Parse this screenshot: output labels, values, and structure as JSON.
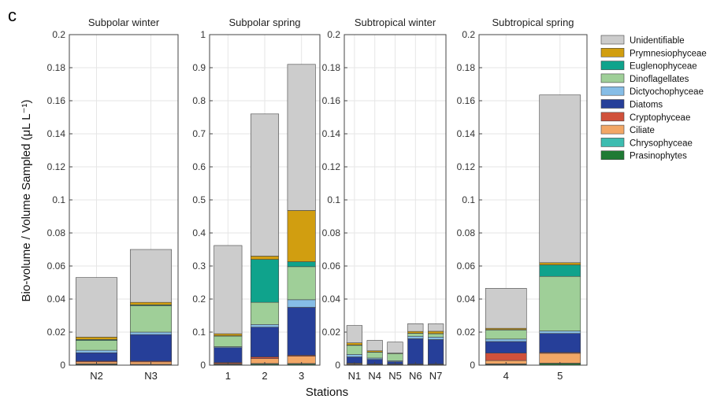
{
  "figure": {
    "panel_letter": "c",
    "ylabel": "Bio-volume / Volume Sampled (μL L⁻¹)",
    "xlabel": "Stations"
  },
  "colors": {
    "Unidentifiable": "#cccccc",
    "Prymnesiophyceae": "#d19e10",
    "Euglenophyceae": "#0fa38c",
    "Dinoflagellates": "#9fcf98",
    "Dictyochophyceae": "#86bde6",
    "Diatoms": "#263f99",
    "Cryptophyceae": "#d0513b",
    "Ciliate": "#f2a766",
    "Chrysophyceae": "#3dbcb0",
    "Prasinophytes": "#1f7a34"
  },
  "legend": [
    "Unidentifiable",
    "Prymnesiophyceae",
    "Euglenophyceae",
    "Dinoflagellates",
    "Dictyochophyceae",
    "Diatoms",
    "Cryptophyceae",
    "Ciliate",
    "Chrysophyceae",
    "Prasinophytes"
  ],
  "chart_data": [
    {
      "type": "bar",
      "stacked": true,
      "title": "Subpolar winter",
      "ylim": [
        0,
        0.2
      ],
      "yticks": [
        "0",
        "0.02",
        "0.04",
        "0.06",
        "0.08",
        "0.1",
        "0.12",
        "0.14",
        "0.16",
        "0.18",
        "0.2"
      ],
      "categories": [
        "N2",
        "N3"
      ],
      "series": [
        {
          "name": "Prasinophytes",
          "values": [
            0.0005,
            0.0003
          ]
        },
        {
          "name": "Chrysophyceae",
          "values": [
            0.0003,
            0.0002
          ]
        },
        {
          "name": "Ciliate",
          "values": [
            0.0012,
            0.0015
          ]
        },
        {
          "name": "Cryptophyceae",
          "values": [
            0.0005,
            0.0005
          ]
        },
        {
          "name": "Diatoms",
          "values": [
            0.005,
            0.016
          ]
        },
        {
          "name": "Dictyochophyceae",
          "values": [
            0.0015,
            0.0015
          ]
        },
        {
          "name": "Dinoflagellates",
          "values": [
            0.006,
            0.016
          ]
        },
        {
          "name": "Euglenophyceae",
          "values": [
            0.0005,
            0.0005
          ]
        },
        {
          "name": "Prymnesiophyceae",
          "values": [
            0.0015,
            0.0015
          ]
        },
        {
          "name": "Unidentifiable",
          "values": [
            0.036,
            0.032
          ]
        }
      ]
    },
    {
      "type": "bar",
      "stacked": true,
      "title": "Subpolar spring",
      "ylim": [
        0,
        1
      ],
      "yticks": [
        "0",
        "0.1",
        "0.2",
        "0.3",
        "0.4",
        "0.5",
        "0.6",
        "0.7",
        "0.8",
        "0.9",
        "1"
      ],
      "categories": [
        "1",
        "2",
        "3"
      ],
      "series": [
        {
          "name": "Prasinophytes",
          "values": [
            0.002,
            0.003,
            0.003
          ]
        },
        {
          "name": "Chrysophyceae",
          "values": [
            0.001,
            0.002,
            0.002
          ]
        },
        {
          "name": "Ciliate",
          "values": [
            0.002,
            0.015,
            0.022
          ]
        },
        {
          "name": "Cryptophyceae",
          "values": [
            0.003,
            0.005,
            0.003
          ]
        },
        {
          "name": "Diatoms",
          "values": [
            0.045,
            0.09,
            0.145
          ]
        },
        {
          "name": "Dictyochophyceae",
          "values": [
            0.003,
            0.008,
            0.023
          ]
        },
        {
          "name": "Dinoflagellates",
          "values": [
            0.032,
            0.067,
            0.1
          ]
        },
        {
          "name": "Euglenophyceae",
          "values": [
            0.001,
            0.13,
            0.015
          ]
        },
        {
          "name": "Prymnesiophyceae",
          "values": [
            0.006,
            0.01,
            0.155
          ]
        },
        {
          "name": "Unidentifiable",
          "values": [
            0.267,
            0.43,
            0.442
          ]
        }
      ]
    },
    {
      "type": "bar",
      "stacked": true,
      "title": "Subtropical winter",
      "ylim": [
        0,
        0.2
      ],
      "yticks": [
        "0",
        "0.02",
        "0.04",
        "0.06",
        "0.08",
        "0.1",
        "0.12",
        "0.14",
        "0.16",
        "0.18",
        "0.2"
      ],
      "categories": [
        "N1",
        "N4",
        "N5",
        "N6",
        "N7"
      ],
      "series": [
        {
          "name": "Prasinophytes",
          "values": [
            0.0003,
            0.0002,
            0.0002,
            0.0003,
            0.0003
          ]
        },
        {
          "name": "Chrysophyceae",
          "values": [
            0.0002,
            0.0001,
            0.0001,
            0.0001,
            0.0001
          ]
        },
        {
          "name": "Ciliate",
          "values": [
            0.0005,
            0.0003,
            0.0003,
            0.0002,
            0.0002
          ]
        },
        {
          "name": "Cryptophyceae",
          "values": [
            0.0002,
            0.0001,
            0.0001,
            0.0001,
            0.0001
          ]
        },
        {
          "name": "Diatoms",
          "values": [
            0.0038,
            0.0028,
            0.0014,
            0.0153,
            0.0148
          ]
        },
        {
          "name": "Dictyochophyceae",
          "values": [
            0.0015,
            0.0008,
            0.0006,
            0.0015,
            0.0015
          ]
        },
        {
          "name": "Dinoflagellates",
          "values": [
            0.0055,
            0.0035,
            0.0043,
            0.0017,
            0.002
          ]
        },
        {
          "name": "Euglenophyceae",
          "values": [
            0.0002,
            0.0001,
            0.0001,
            0.0001,
            0.0001
          ]
        },
        {
          "name": "Prymnesiophyceae",
          "values": [
            0.0013,
            0.0008,
            0.0002,
            0.0011,
            0.0014
          ]
        },
        {
          "name": "Unidentifiable",
          "values": [
            0.0105,
            0.0063,
            0.0067,
            0.0047,
            0.0045
          ]
        }
      ]
    },
    {
      "type": "bar",
      "stacked": true,
      "title": "Subtropical spring",
      "ylim": [
        0,
        0.2
      ],
      "yticks": [
        "0",
        "0.02",
        "0.04",
        "0.06",
        "0.08",
        "0.1",
        "0.12",
        "0.14",
        "0.16",
        "0.18",
        "0.2"
      ],
      "categories": [
        "4",
        "5"
      ],
      "series": [
        {
          "name": "Prasinophytes",
          "values": [
            0.0005,
            0.001
          ]
        },
        {
          "name": "Chrysophyceae",
          "values": [
            0.0003,
            0.0002
          ]
        },
        {
          "name": "Ciliate",
          "values": [
            0.002,
            0.006
          ]
        },
        {
          "name": "Cryptophyceae",
          "values": [
            0.0045,
            0.0005
          ]
        },
        {
          "name": "Diatoms",
          "values": [
            0.007,
            0.0115
          ]
        },
        {
          "name": "Dictyochophyceae",
          "values": [
            0.0015,
            0.0015
          ]
        },
        {
          "name": "Dinoflagellates",
          "values": [
            0.0055,
            0.033
          ]
        },
        {
          "name": "Euglenophyceae",
          "values": [
            0.0002,
            0.007
          ]
        },
        {
          "name": "Prymnesiophyceae",
          "values": [
            0.0008,
            0.0013
          ]
        },
        {
          "name": "Unidentifiable",
          "values": [
            0.0242,
            0.1015
          ]
        }
      ]
    }
  ]
}
